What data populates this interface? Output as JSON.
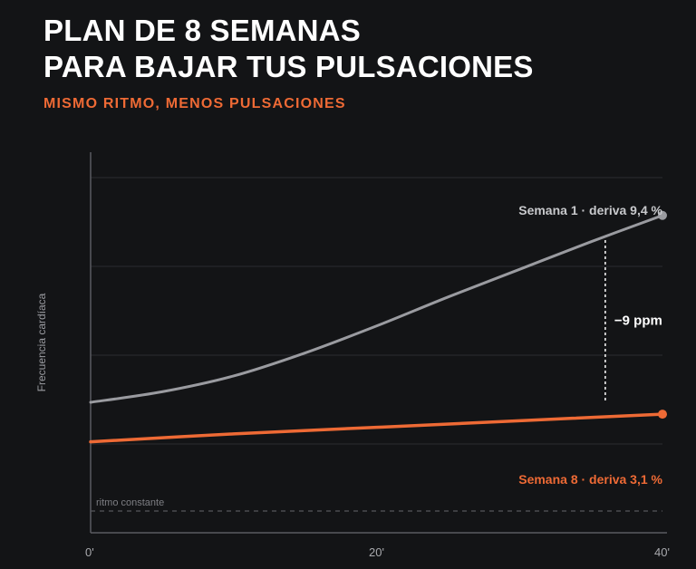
{
  "header": {
    "title_line_1": "PLAN DE 8 SEMANAS",
    "title_line_2": "PARA BAJAR TUS PULSACIONES",
    "subtitle": "MISMO RITMO, MENOS PULSACIONES"
  },
  "colors": {
    "background": "#131416",
    "accent": "#ee6a35",
    "week1": "#9a9ba0",
    "grid": "#2b2c30",
    "axis": "#5a5b60"
  },
  "chart_data": {
    "type": "line",
    "ylabel": "Frecuencia cardíaca",
    "xlabel": "",
    "x_ticks": [
      "0'",
      "20'",
      "40'"
    ],
    "xlim": [
      0,
      40
    ],
    "y_ticks_labeled": false,
    "grid": "horizontal",
    "series": [
      {
        "name": "Semana 1 · deriva 9,4 %",
        "color": "#9a9ba0",
        "x": [
          0,
          5,
          10,
          15,
          20,
          25,
          30,
          35,
          40
        ],
        "y": [
          100,
          101.6,
          104.0,
          107.5,
          111.6,
          116.0,
          120.2,
          124.4,
          128.4
        ]
      },
      {
        "name": "Semana 8 · deriva 3,1 %",
        "color": "#ee6a35",
        "x": [
          0,
          10,
          20,
          30,
          40
        ],
        "y": [
          94.0,
          95.2,
          96.2,
          97.2,
          98.2
        ]
      }
    ],
    "annotations": [
      {
        "text": "−9 ppm",
        "x": 36
      }
    ],
    "reference_line": {
      "label": "ritmo constante"
    }
  }
}
